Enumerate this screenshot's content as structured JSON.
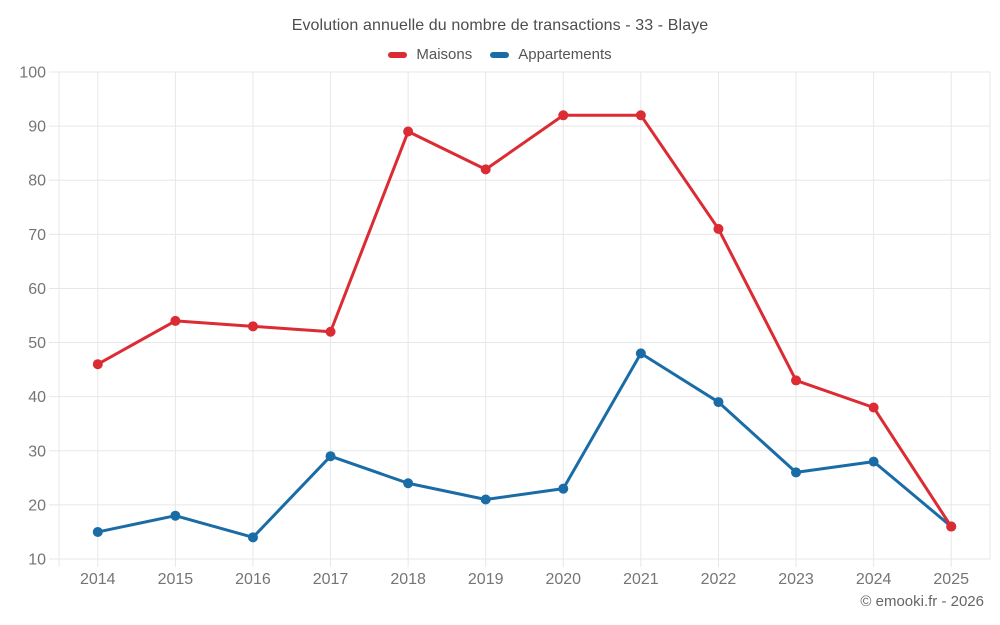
{
  "title": "Evolution annuelle du nombre de transactions - 33 - Blaye",
  "footer": {
    "copyright": "© emooki.fr - 2026"
  },
  "colors": {
    "maisons": "#db2b33",
    "appartements": "#1a6ca6",
    "grid": "#e7e7e7",
    "axis_text": "#757575",
    "title_text": "#4d4d4d"
  },
  "chart_data": {
    "type": "line",
    "title": "Evolution annuelle du nombre de transactions - 33 - Blaye",
    "categories": [
      "2014",
      "2015",
      "2016",
      "2017",
      "2018",
      "2019",
      "2020",
      "2021",
      "2022",
      "2023",
      "2024",
      "2025"
    ],
    "series": [
      {
        "name": "Maisons",
        "color": "#db2b33",
        "values": [
          46,
          54,
          53,
          52,
          89,
          82,
          92,
          92,
          71,
          43,
          38,
          16
        ]
      },
      {
        "name": "Appartements",
        "color": "#1a6ca6",
        "values": [
          15,
          18,
          14,
          29,
          24,
          21,
          23,
          48,
          39,
          26,
          28,
          16
        ]
      }
    ],
    "xlabel": "",
    "ylabel": "",
    "ylim": [
      10,
      100
    ],
    "yticks": [
      10,
      20,
      30,
      40,
      50,
      60,
      70,
      80,
      90,
      100
    ],
    "grid": true,
    "legend_position": "top"
  }
}
